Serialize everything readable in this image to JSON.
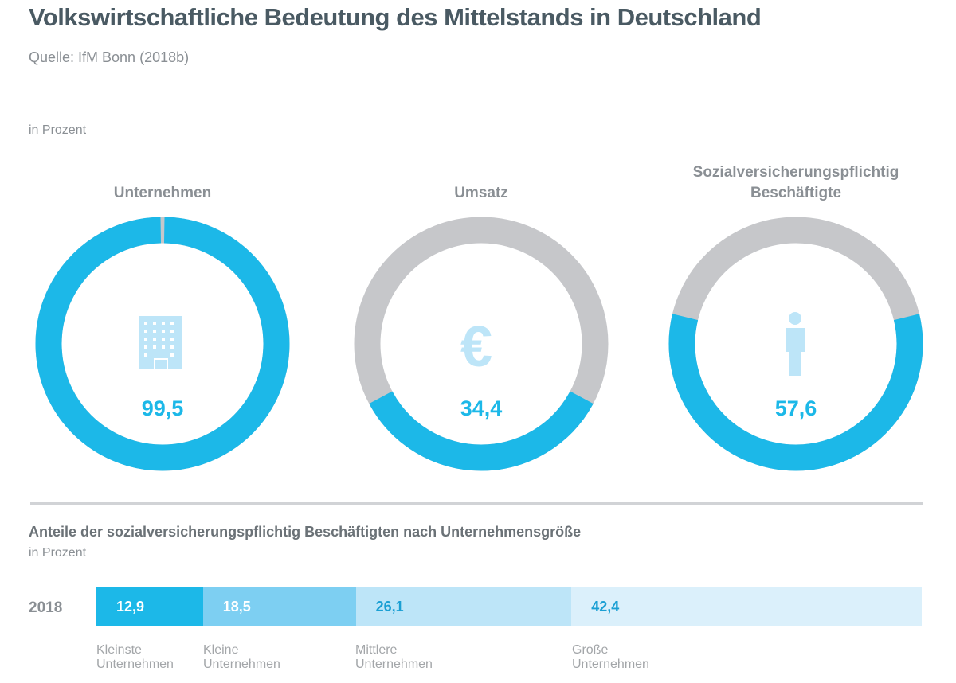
{
  "title": "Volkswirtschaftliche Bedeutung des Mittelstands in Deutschland",
  "source": "Quelle: IfM Bonn (2018b)",
  "chart_data": [
    {
      "type": "pie",
      "unit": "in Prozent",
      "donuts": [
        {
          "title": "Unternehmen",
          "value": 99.5,
          "value_label": "99,5",
          "icon": "building-icon"
        },
        {
          "title": "Umsatz",
          "value": 34.4,
          "value_label": "34,4",
          "icon": "euro-icon"
        },
        {
          "title": "Sozialversicherungspflichtig Beschäftigte",
          "value": 57.6,
          "value_label": "57,6",
          "icon": "person-icon"
        }
      ],
      "colors": {
        "value": "#1cb8e8",
        "rest": "#c6c7ca"
      }
    },
    {
      "type": "bar",
      "stacked": true,
      "title": "Anteile der sozialversicherungspflichtig Beschäftigten nach Unternehmensgröße",
      "unit": "in Prozent",
      "categories": [
        "2018"
      ],
      "series": [
        {
          "name": "Kleinste Unternehmen",
          "value": 12.9,
          "label": "12,9",
          "color": "#1cb8e8",
          "text_color": "#ffffff"
        },
        {
          "name": "Kleine Unternehmen",
          "value": 18.5,
          "label": "18,5",
          "color": "#7dcff2",
          "text_color": "#ffffff"
        },
        {
          "name": "Mittlere Unternehmen",
          "value": 26.1,
          "label": "26,1",
          "color": "#bde5f8",
          "text_color": "#1a9fd3"
        },
        {
          "name": "Große Unternehmen",
          "value": 42.4,
          "label": "42,4",
          "color": "#dbf0fb",
          "text_color": "#1a9fd3"
        }
      ]
    }
  ],
  "labels": {
    "cat0a": "Kleinste",
    "cat0b": "Unternehmen",
    "cat1a": "Kleine",
    "cat1b": "Unternehmen",
    "cat2a": "Mittlere",
    "cat2b": "Unternehmen",
    "cat3a": "Große",
    "cat3b": "Unternehmen"
  }
}
